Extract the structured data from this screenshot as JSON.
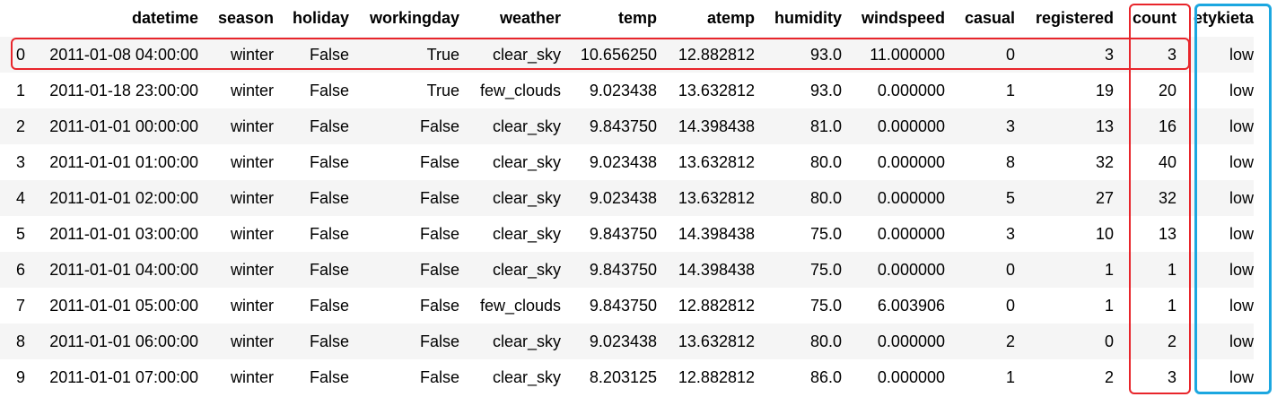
{
  "table": {
    "columns": [
      "",
      "datetime",
      "season",
      "holiday",
      "workingday",
      "weather",
      "temp",
      "atemp",
      "humidity",
      "windspeed",
      "casual",
      "registered",
      "count",
      "etykieta"
    ],
    "rows": [
      [
        "0",
        "2011-01-08 04:00:00",
        "winter",
        "False",
        "True",
        "clear_sky",
        "10.656250",
        "12.882812",
        "93.0",
        "11.000000",
        "0",
        "3",
        "3",
        "low"
      ],
      [
        "1",
        "2011-01-18 23:00:00",
        "winter",
        "False",
        "True",
        "few_clouds",
        "9.023438",
        "13.632812",
        "93.0",
        "0.000000",
        "1",
        "19",
        "20",
        "low"
      ],
      [
        "2",
        "2011-01-01 00:00:00",
        "winter",
        "False",
        "False",
        "clear_sky",
        "9.843750",
        "14.398438",
        "81.0",
        "0.000000",
        "3",
        "13",
        "16",
        "low"
      ],
      [
        "3",
        "2011-01-01 01:00:00",
        "winter",
        "False",
        "False",
        "clear_sky",
        "9.023438",
        "13.632812",
        "80.0",
        "0.000000",
        "8",
        "32",
        "40",
        "low"
      ],
      [
        "4",
        "2011-01-01 02:00:00",
        "winter",
        "False",
        "False",
        "clear_sky",
        "9.023438",
        "13.632812",
        "80.0",
        "0.000000",
        "5",
        "27",
        "32",
        "low"
      ],
      [
        "5",
        "2011-01-01 03:00:00",
        "winter",
        "False",
        "False",
        "clear_sky",
        "9.843750",
        "14.398438",
        "75.0",
        "0.000000",
        "3",
        "10",
        "13",
        "low"
      ],
      [
        "6",
        "2011-01-01 04:00:00",
        "winter",
        "False",
        "False",
        "clear_sky",
        "9.843750",
        "14.398438",
        "75.0",
        "0.000000",
        "0",
        "1",
        "1",
        "low"
      ],
      [
        "7",
        "2011-01-01 05:00:00",
        "winter",
        "False",
        "False",
        "few_clouds",
        "9.843750",
        "12.882812",
        "75.0",
        "6.003906",
        "0",
        "1",
        "1",
        "low"
      ],
      [
        "8",
        "2011-01-01 06:00:00",
        "winter",
        "False",
        "False",
        "clear_sky",
        "9.023438",
        "13.632812",
        "80.0",
        "0.000000",
        "2",
        "0",
        "2",
        "low"
      ],
      [
        "9",
        "2011-01-01 07:00:00",
        "winter",
        "False",
        "False",
        "clear_sky",
        "8.203125",
        "12.882812",
        "86.0",
        "0.000000",
        "1",
        "2",
        "3",
        "low"
      ]
    ]
  },
  "highlights": {
    "row_color": "#e8252b",
    "count_column_color": "#e8252b",
    "label_column_color": "#1ca7e0"
  }
}
